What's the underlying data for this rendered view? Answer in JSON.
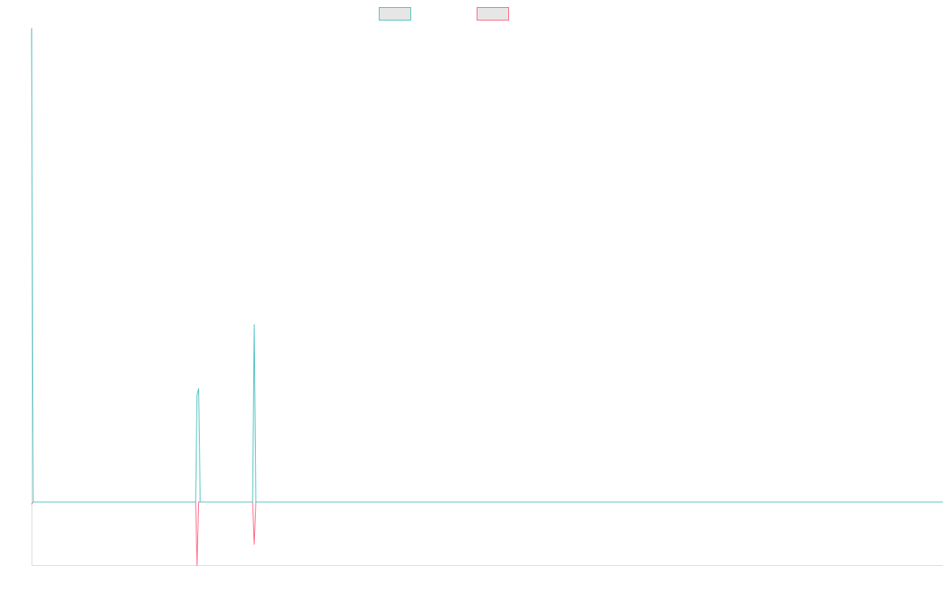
{
  "chart_data": {
    "type": "line",
    "title": "",
    "xlabel": "",
    "ylabel": "",
    "grid": false,
    "legend_position": "top-center",
    "x_range": [
      0,
      400
    ],
    "ylim": [
      -300,
      2200
    ],
    "series": [
      {
        "name": "",
        "color": "#4bc0c0",
        "swatch_fill": "#e6e6e6",
        "points": [
          [
            0,
            2000
          ],
          [
            0.7,
            0
          ],
          [
            72,
            0
          ],
          [
            72.6,
            450
          ],
          [
            73.3,
            480
          ],
          [
            74,
            0
          ],
          [
            97,
            0
          ],
          [
            97.7,
            750
          ],
          [
            98.4,
            0
          ],
          [
            400,
            0
          ]
        ]
      },
      {
        "name": "",
        "color": "#ff6384",
        "swatch_fill": "#e6e6e6",
        "points": [
          [
            0,
            -10
          ],
          [
            0.7,
            0
          ],
          [
            72,
            0
          ],
          [
            72.6,
            -270
          ],
          [
            73.3,
            0
          ],
          [
            97,
            0
          ],
          [
            97.7,
            -180
          ],
          [
            98.4,
            0
          ],
          [
            400,
            0
          ]
        ]
      }
    ]
  }
}
